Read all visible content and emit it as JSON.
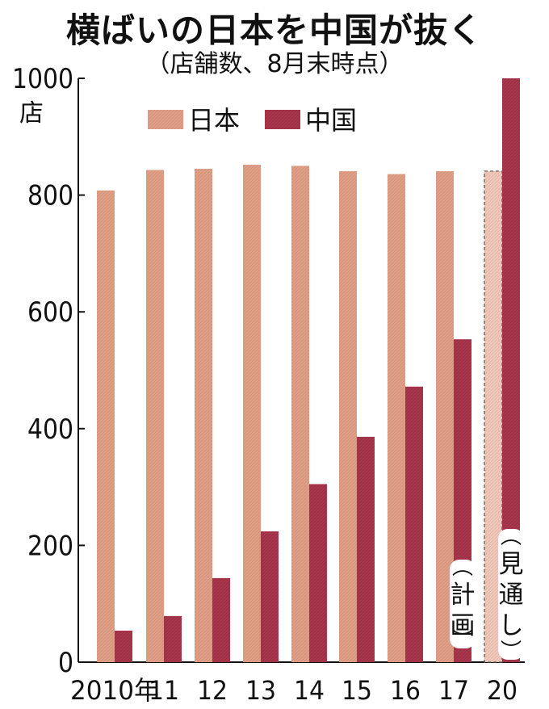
{
  "title": "横ばいの日本を中国が抜く",
  "subtitle": "（店舗数、8月末時点）",
  "colors": {
    "japan": "#e0a088",
    "china": "#a8364c",
    "japan_forecast": "#efc9bb"
  },
  "chart_data": {
    "type": "bar",
    "title": "横ばいの日本を中国が抜く",
    "subtitle": "（店舗数、8月末時点）",
    "ylabel": "店",
    "xlabel": "",
    "ylim": [
      0,
      1000
    ],
    "yticks": [
      0,
      200,
      400,
      600,
      800,
      1000
    ],
    "categories": [
      "2010年",
      "11",
      "12",
      "13",
      "14",
      "15",
      "16",
      "17",
      "20"
    ],
    "legend_position": "top-left",
    "grid": false,
    "series": [
      {
        "name": "日本",
        "values": [
          808,
          843,
          845,
          852,
          850,
          841,
          836,
          841,
          841
        ]
      },
      {
        "name": "中国",
        "values": [
          54,
          79,
          144,
          224,
          305,
          386,
          472,
          553,
          1000
        ]
      }
    ],
    "annotations": [
      {
        "category": "17",
        "text": "計画"
      },
      {
        "category": "20",
        "text": "見通し"
      }
    ]
  }
}
